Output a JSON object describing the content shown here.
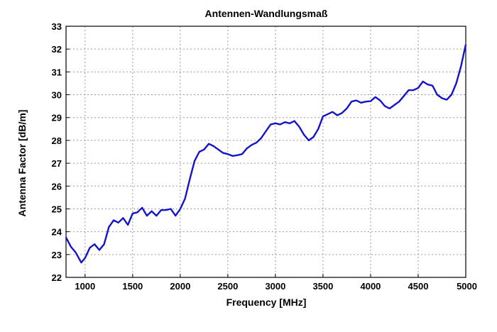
{
  "chart_data": {
    "type": "line",
    "title": "Antennen-Wandlungsmaß",
    "xlabel": "Frequency [MHz]",
    "ylabel": "Antenna Factor [dB/m]",
    "xlim": [
      800,
      5000
    ],
    "ylim": [
      22,
      33
    ],
    "xticks": [
      1000,
      1500,
      2000,
      2500,
      3000,
      3500,
      4000,
      4500,
      5000
    ],
    "yticks": [
      22,
      23,
      24,
      25,
      26,
      27,
      28,
      29,
      30,
      31,
      32,
      33
    ],
    "grid": true,
    "line_color": "#1414c8",
    "series": [
      {
        "x": [
          800,
          850,
          900,
          960,
          1000,
          1050,
          1100,
          1150,
          1200,
          1250,
          1300,
          1350,
          1400,
          1450,
          1500,
          1550,
          1600,
          1650,
          1700,
          1750,
          1800,
          1850,
          1900,
          1950,
          2000,
          2050,
          2100,
          2150,
          2200,
          2250,
          2300,
          2350,
          2400,
          2450,
          2500,
          2550,
          2600,
          2650,
          2700,
          2750,
          2800,
          2850,
          2900,
          2950,
          3000,
          3050,
          3100,
          3150,
          3200,
          3250,
          3300,
          3350,
          3400,
          3450,
          3500,
          3550,
          3600,
          3650,
          3700,
          3750,
          3800,
          3850,
          3900,
          3950,
          4000,
          4050,
          4100,
          4150,
          4200,
          4250,
          4300,
          4350,
          4400,
          4450,
          4500,
          4550,
          4600,
          4650,
          4700,
          4750,
          4800,
          4850,
          4900,
          4950,
          5000
        ],
        "values": [
          23.75,
          23.35,
          23.1,
          22.65,
          22.85,
          23.3,
          23.45,
          23.2,
          23.45,
          24.2,
          24.5,
          24.4,
          24.6,
          24.3,
          24.8,
          24.85,
          25.05,
          24.7,
          24.9,
          24.7,
          24.95,
          24.95,
          25.0,
          24.7,
          25.0,
          25.45,
          26.3,
          27.1,
          27.5,
          27.6,
          27.85,
          27.75,
          27.6,
          27.45,
          27.4,
          27.32,
          27.35,
          27.4,
          27.65,
          27.8,
          27.9,
          28.1,
          28.4,
          28.7,
          28.75,
          28.7,
          28.8,
          28.75,
          28.85,
          28.6,
          28.25,
          28.0,
          28.15,
          28.5,
          29.05,
          29.15,
          29.25,
          29.1,
          29.2,
          29.4,
          29.7,
          29.75,
          29.65,
          29.7,
          29.72,
          29.9,
          29.75,
          29.5,
          29.4,
          29.55,
          29.7,
          29.95,
          30.2,
          30.2,
          30.3,
          30.58,
          30.45,
          30.4,
          30.0,
          29.85,
          29.78,
          30.0,
          30.5,
          31.25,
          32.2
        ]
      }
    ]
  }
}
